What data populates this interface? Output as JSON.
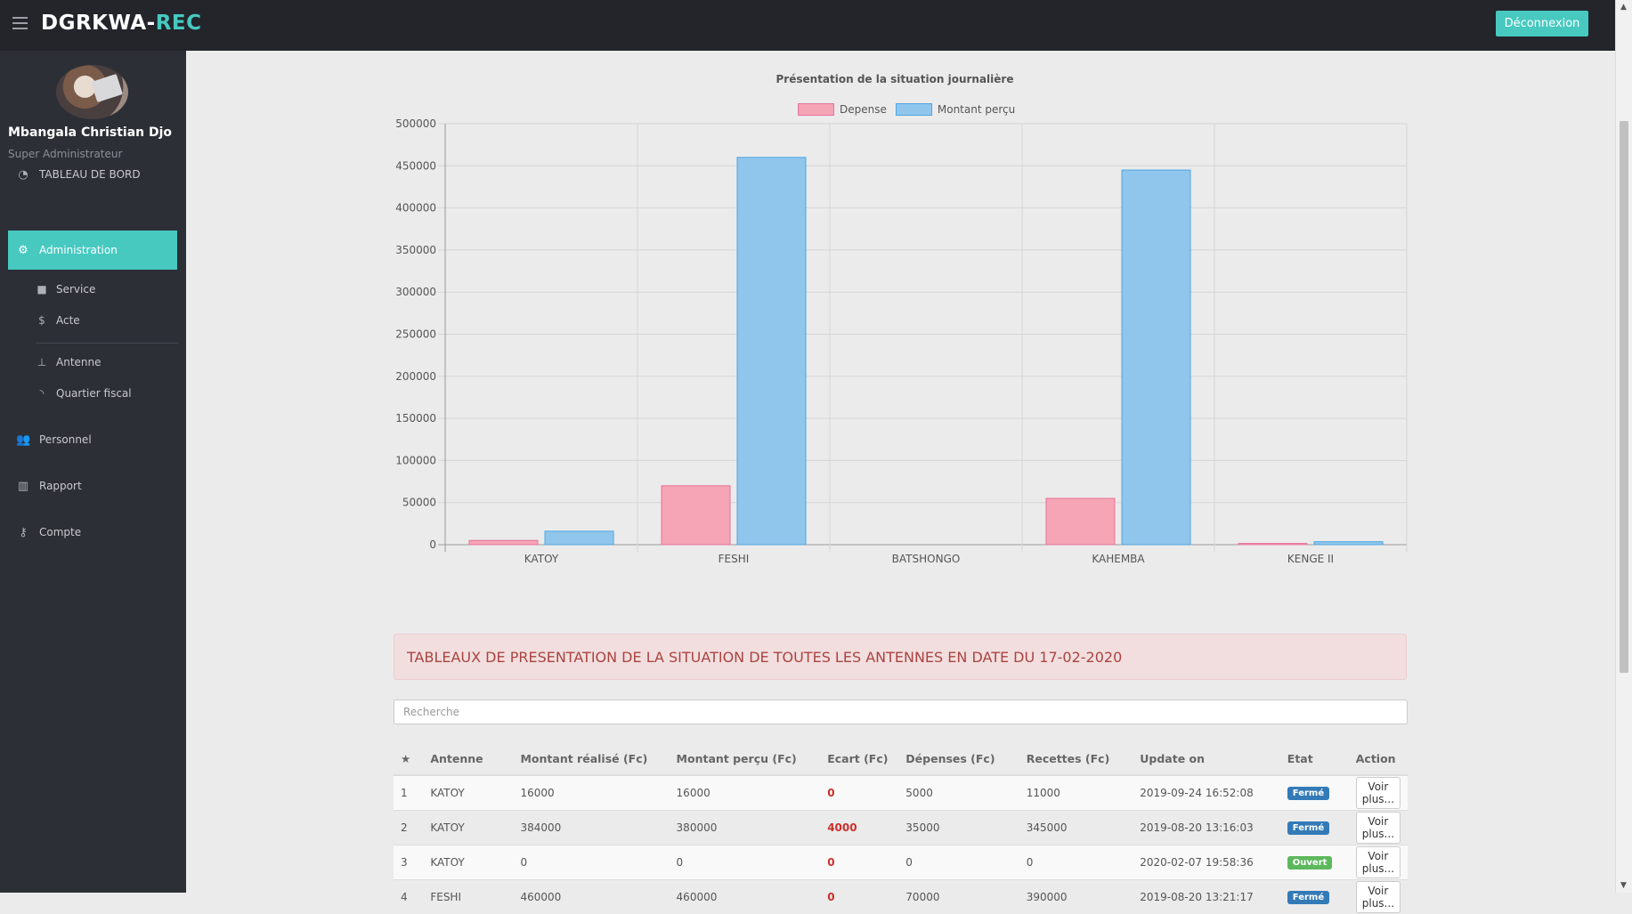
{
  "brand": {
    "part1": "DGRKWA-",
    "part2": "REC"
  },
  "header": {
    "logout_label": "Déconnexion"
  },
  "user": {
    "name": "Mbangala Christian Djo",
    "role": "Super Administrateur"
  },
  "sidebar": {
    "items": [
      {
        "label": "TABLEAU DE BORD",
        "icon": "dashboard-icon"
      },
      {
        "label": "Administration",
        "icon": "gears-icon",
        "active": true
      },
      {
        "label": "Personnel",
        "icon": "users-icon"
      },
      {
        "label": "Rapport",
        "icon": "bar-chart-icon"
      },
      {
        "label": "Compte",
        "icon": "key-icon"
      }
    ],
    "subitems": [
      {
        "label": "Service",
        "icon": "briefcase-icon"
      },
      {
        "label": "Acte",
        "icon": "dollar-icon"
      },
      {
        "label": "Antenne",
        "icon": "sitemap-icon"
      },
      {
        "label": "Quartier fiscal",
        "icon": "rss-icon"
      }
    ]
  },
  "chart_data": {
    "type": "bar",
    "title": "Présentation de la situation journalière",
    "categories": [
      "KATOY",
      "FESHI",
      "BATSHONGO",
      "KAHEMBA",
      "KENGE II"
    ],
    "series": [
      {
        "name": "Depense",
        "values": [
          5000,
          70000,
          0,
          55000,
          1500
        ],
        "color": "#f5a5b6",
        "border": "#e8739a"
      },
      {
        "name": "Montant perçu",
        "values": [
          16000,
          460000,
          0,
          445000,
          3500
        ],
        "color": "#90c6ec",
        "border": "#4fa5e0"
      }
    ],
    "ylim": [
      0,
      500000
    ],
    "yticks": [
      0,
      50000,
      100000,
      150000,
      200000,
      250000,
      300000,
      350000,
      400000,
      450000,
      500000
    ],
    "grid": true,
    "legend_position": "top"
  },
  "table_section": {
    "title": "TABLEAUX DE PRESENTATION DE LA SITUATION DE TOUTES LES ANTENNES EN DATE DU 17-02-2020",
    "search_placeholder": "Recherche"
  },
  "table": {
    "headers": [
      "★",
      "Antenne",
      "Montant réalisé (Fc)",
      "Montant perçu (Fc)",
      "Ecart (Fc)",
      "Dépenses (Fc)",
      "Recettes (Fc)",
      "Update on",
      "Etat",
      "Action"
    ],
    "rows": [
      {
        "n": "1",
        "antenne": "KATOY",
        "realise": "16000",
        "percu": "16000",
        "ecart": "0",
        "depenses": "5000",
        "recettes": "11000",
        "update": "2019-09-24 16:52:08",
        "etat": "Fermé",
        "action": "Voir plus..."
      },
      {
        "n": "2",
        "antenne": "KATOY",
        "realise": "384000",
        "percu": "380000",
        "ecart": "4000",
        "depenses": "35000",
        "recettes": "345000",
        "update": "2019-08-20 13:16:03",
        "etat": "Fermé",
        "action": "Voir plus..."
      },
      {
        "n": "3",
        "antenne": "KATOY",
        "realise": "0",
        "percu": "0",
        "ecart": "0",
        "depenses": "0",
        "recettes": "0",
        "update": "2020-02-07 19:58:36",
        "etat": "Ouvert",
        "action": "Voir plus..."
      },
      {
        "n": "4",
        "antenne": "FESHI",
        "realise": "460000",
        "percu": "460000",
        "ecart": "0",
        "depenses": "70000",
        "recettes": "390000",
        "update": "2019-08-20 13:21:17",
        "etat": "Fermé",
        "action": "Voir plus..."
      }
    ]
  }
}
